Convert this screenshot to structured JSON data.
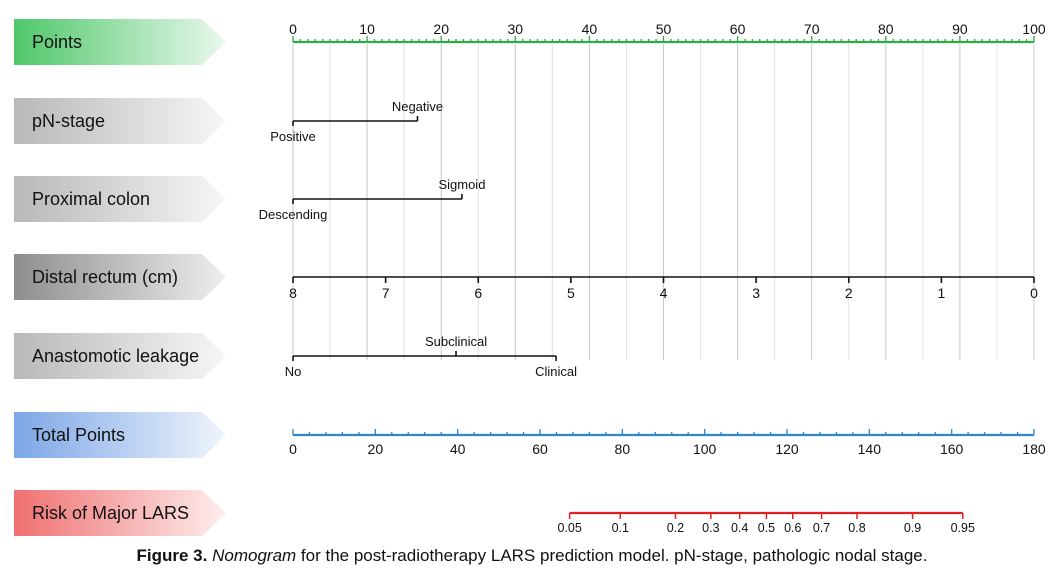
{
  "chart_data": {
    "type": "nomogram",
    "colors": {
      "points": "#2eaa46",
      "total": "#2f86c8",
      "risk": "#e02020",
      "axis": "#111111",
      "grid": "#d4d4d4",
      "banner_green": "#4fc76a",
      "banner_gray": "#b8b8b8",
      "banner_dark": "#9a9a9a",
      "banner_blue": "#7da6e6",
      "banner_red": "#f07070"
    },
    "rows": [
      {
        "name": "Points",
        "color": "banner_green",
        "kind": "points",
        "range": [
          0,
          100
        ],
        "ticks": [
          0,
          10,
          20,
          30,
          40,
          50,
          60,
          70,
          80,
          90,
          100
        ],
        "minor_step": 1
      },
      {
        "name": "pN-stage",
        "color": "banner_gray",
        "kind": "categorical",
        "levels": [
          {
            "label": "Positive",
            "points": 0,
            "label_pos": "below"
          },
          {
            "label": "Negative",
            "points": 16.8,
            "label_pos": "above"
          }
        ]
      },
      {
        "name": "Proximal colon",
        "color": "banner_gray",
        "kind": "categorical",
        "levels": [
          {
            "label": "Descending",
            "points": 0,
            "label_pos": "below"
          },
          {
            "label": "Sigmoid",
            "points": 22.8,
            "label_pos": "above"
          }
        ]
      },
      {
        "name": "Distal rectum (cm)",
        "color": "banner_dark",
        "kind": "continuous",
        "ticks": [
          {
            "label": "8",
            "points": 0
          },
          {
            "label": "7",
            "points": 12.5
          },
          {
            "label": "6",
            "points": 25
          },
          {
            "label": "5",
            "points": 37.5
          },
          {
            "label": "4",
            "points": 50
          },
          {
            "label": "3",
            "points": 62.5
          },
          {
            "label": "2",
            "points": 75
          },
          {
            "label": "1",
            "points": 87.5
          },
          {
            "label": "0",
            "points": 100
          }
        ]
      },
      {
        "name": "Anastomotic leakage",
        "color": "banner_gray",
        "kind": "categorical",
        "levels": [
          {
            "label": "No",
            "points": 0,
            "label_pos": "below"
          },
          {
            "label": "Subclinical",
            "points": 22,
            "label_pos": "above"
          },
          {
            "label": "Clinical",
            "points": 35.5,
            "label_pos": "below"
          }
        ]
      },
      {
        "name": "Total Points",
        "color": "banner_blue",
        "kind": "total",
        "range": [
          0,
          180
        ],
        "ticks": [
          0,
          20,
          40,
          60,
          80,
          100,
          120,
          140,
          160,
          180
        ],
        "minor_step": 4
      },
      {
        "name": "Risk of Major LARS",
        "color": "banner_red",
        "kind": "risk",
        "ticks": [
          {
            "label": "0.05",
            "total": 67.2
          },
          {
            "label": "0.1",
            "total": 79.5
          },
          {
            "label": "0.2",
            "total": 92.9
          },
          {
            "label": "0.3",
            "total": 101.5
          },
          {
            "label": "0.4",
            "total": 108.5
          },
          {
            "label": "0.5",
            "total": 115
          },
          {
            "label": "0.6",
            "total": 121.4
          },
          {
            "label": "0.7",
            "total": 128.4
          },
          {
            "label": "0.8",
            "total": 137
          },
          {
            "label": "0.9",
            "total": 150.5
          },
          {
            "label": "0.95",
            "total": 162.7
          }
        ]
      }
    ]
  },
  "caption": {
    "lead": "Figure 3.",
    "italic": "Nomogram",
    "rest": " for the post-radiotherapy LARS prediction model. pN-stage, pathologic nodal stage."
  }
}
